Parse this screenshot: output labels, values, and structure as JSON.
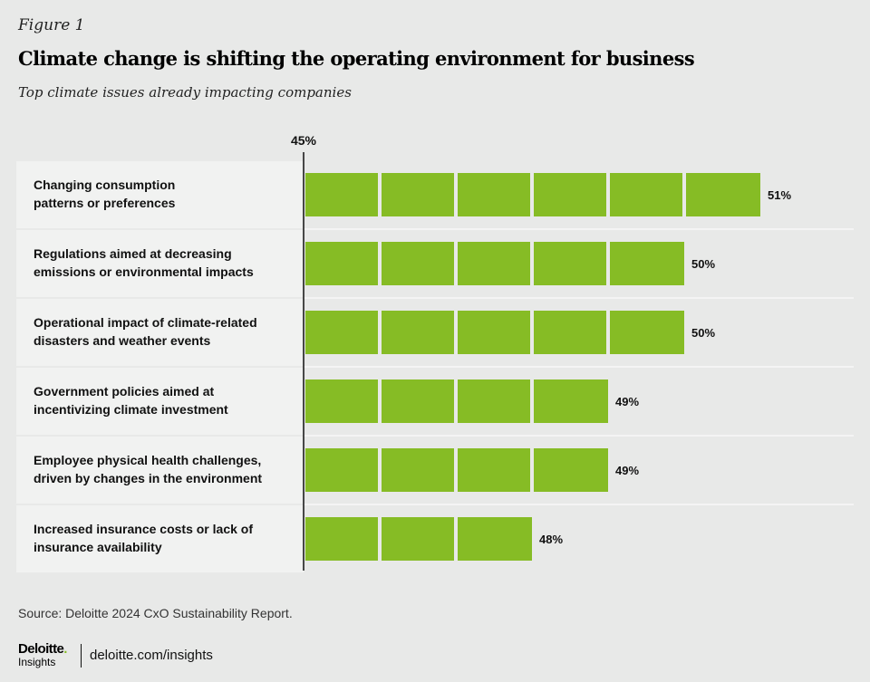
{
  "header": {
    "figure_label": "Figure 1",
    "title": "Climate change is shifting the operating environment for business",
    "subtitle": "Top climate issues already impacting companies"
  },
  "chart_data": {
    "type": "bar",
    "orientation": "horizontal",
    "baseline_label": "45%",
    "xlim": [
      45,
      51
    ],
    "bar_color": "#86bc25",
    "categories": [
      [
        "Changing consumption",
        "patterns or preferences"
      ],
      [
        "Regulations aimed at decreasing",
        "emissions or environmental impacts"
      ],
      [
        "Operational impact of climate-related",
        "disasters and weather events"
      ],
      [
        "Government policies aimed at",
        "incentivizing climate investment"
      ],
      [
        "Employee physical health challenges,",
        "driven by changes in the environment"
      ],
      [
        "Increased insurance costs or lack of",
        "insurance availability"
      ]
    ],
    "values": [
      51,
      50,
      50,
      49,
      49,
      48
    ],
    "value_labels": [
      "51%",
      "50%",
      "50%",
      "49%",
      "49%",
      "48%"
    ]
  },
  "footer": {
    "source": "Source: Deloitte 2024 CxO Sustainability Report.",
    "logo_brand": "Deloitte",
    "logo_dot": ".",
    "logo_sub": "Insights",
    "site": "deloitte.com/insights"
  }
}
